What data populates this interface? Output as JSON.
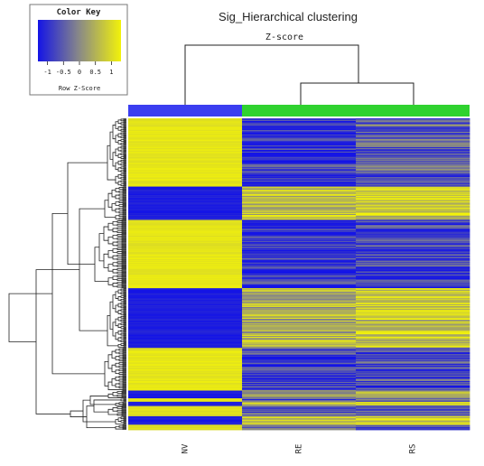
{
  "chart_data": {
    "type": "heatmap",
    "title": "Sig_Hierarchical clustering",
    "subtitle": "Z-score",
    "columns": [
      "NV",
      "RE",
      "RS"
    ],
    "column_groups": [
      {
        "columns": [
          "NV"
        ],
        "color": "#3b3ef0"
      },
      {
        "columns": [
          "RE",
          "RS"
        ],
        "color": "#2fd22f"
      }
    ],
    "color_scale": {
      "low": "#1414e6",
      "mid": "#8a8a86",
      "high": "#f2f20a",
      "range": [
        -1.3,
        1.3
      ]
    },
    "color_key": {
      "title": "Color Key",
      "xlabel": "Row Z-Score",
      "ticks": [
        "-1",
        "-0.5",
        "0",
        "0.5",
        "1"
      ]
    },
    "row_blocks": [
      {
        "rows": 80,
        "NV": 1.15,
        "RE": -0.95,
        "RS": -0.45
      },
      {
        "rows": 39,
        "NV": -1.2,
        "RE": 0.65,
        "RS": 0.95
      },
      {
        "rows": 80,
        "NV": 1.15,
        "RE": -0.95,
        "RS": -0.75
      },
      {
        "rows": 70,
        "NV": -1.2,
        "RE": 0.5,
        "RS": 0.8
      },
      {
        "rows": 50,
        "NV": 1.15,
        "RE": -0.95,
        "RS": -0.75
      },
      {
        "rows": 9,
        "NV": -1.2,
        "RE": 0.2,
        "RS": 0.85
      },
      {
        "rows": 4,
        "NV": 1.15,
        "RE": -0.8,
        "RS": -0.6
      },
      {
        "rows": 5,
        "NV": -1.2,
        "RE": 0.6,
        "RS": 0.9
      },
      {
        "rows": 12,
        "NV": 1.1,
        "RE": -0.6,
        "RS": -0.7
      },
      {
        "rows": 10,
        "NV": -1.2,
        "RE": 0.7,
        "RS": 0.9
      },
      {
        "rows": 6,
        "NV": 1.1,
        "RE": -0.5,
        "RS": -0.6
      }
    ]
  }
}
